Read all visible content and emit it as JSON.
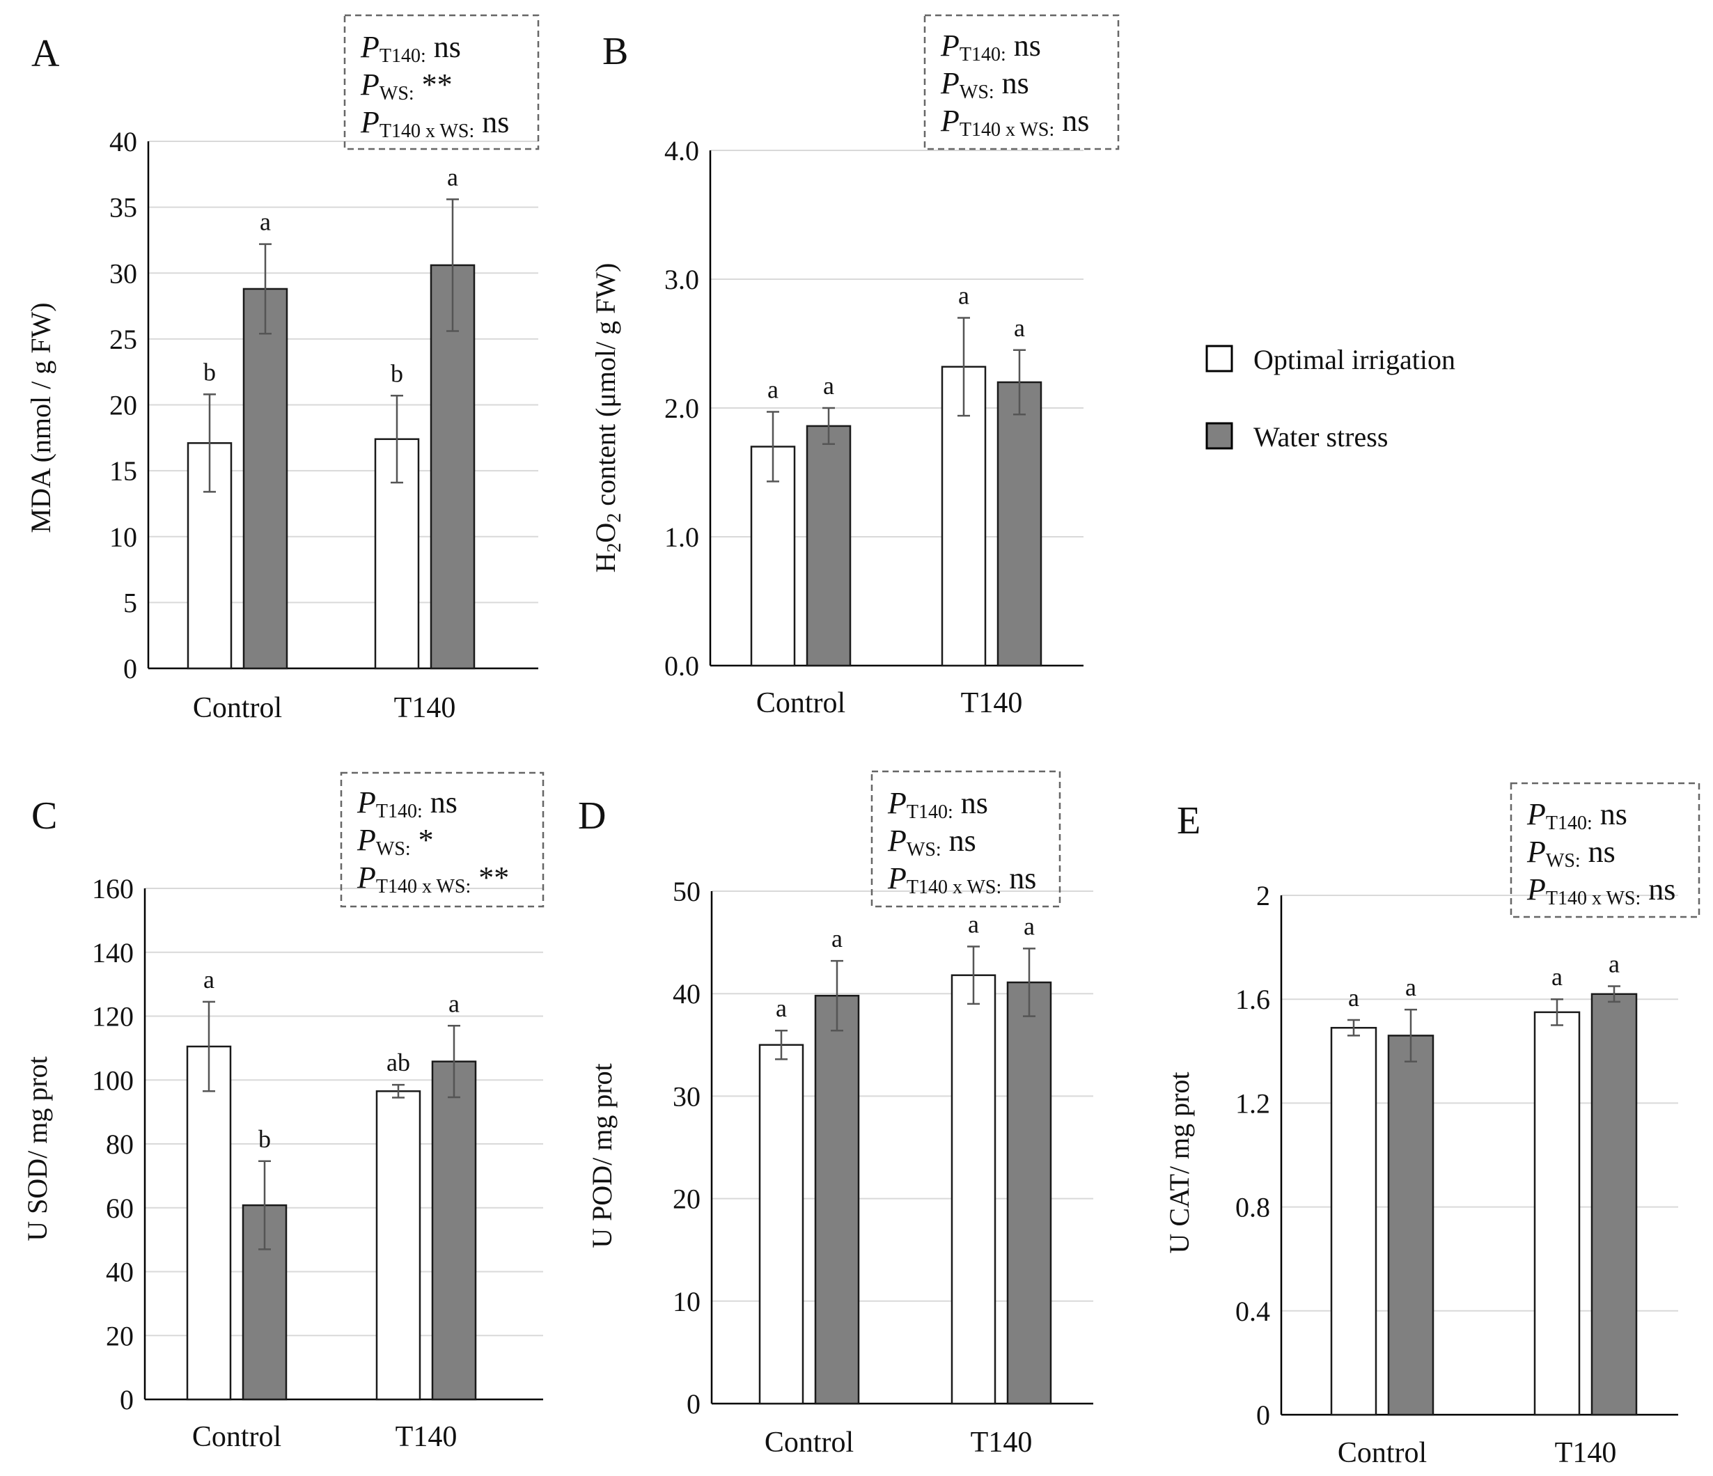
{
  "colors": {
    "optimal": "#ffffff",
    "water_stress": "#808080",
    "bar_stroke": "#1a1a1a",
    "grid": "#d9d9d9",
    "error_bar": "#555555",
    "box_border": "#666666"
  },
  "legend": {
    "items": [
      {
        "label": "Optimal irrigation",
        "color": "#ffffff"
      },
      {
        "label": "Water stress",
        "color": "#808080"
      }
    ]
  },
  "chart_data": [
    {
      "panel": "A",
      "type": "bar",
      "categories": [
        "Control",
        "T140"
      ],
      "ylabel": "MDA (nmol / g FW)",
      "ylim": [
        0,
        40
      ],
      "yticks": [
        "0",
        "5",
        "10",
        "15",
        "20",
        "25",
        "30",
        "35",
        "40"
      ],
      "grid": true,
      "series": [
        {
          "name": "Optimal irrigation",
          "values": [
            17.1,
            17.4
          ],
          "errors": [
            3.7,
            3.3
          ],
          "letters": [
            "b",
            "b"
          ]
        },
        {
          "name": "Water stress",
          "values": [
            28.8,
            30.6
          ],
          "errors": [
            3.4,
            5.0
          ],
          "letters": [
            "a",
            "a"
          ]
        }
      ],
      "stats": [
        {
          "P": "P",
          "sub": "T140:",
          "value": "ns"
        },
        {
          "P": "P",
          "sub": "WS:",
          "value": "**"
        },
        {
          "P": "P",
          "sub": "T140 x WS:",
          "value": "ns"
        }
      ]
    },
    {
      "panel": "B",
      "type": "bar",
      "categories": [
        "Control",
        "T140"
      ],
      "ylabel_pre": "H",
      "ylabel_sub1": "2",
      "ylabel_mid": "O",
      "ylabel_sub2": "2",
      "ylabel_post": " content (μmol/ g FW)",
      "ylim": [
        0,
        4
      ],
      "yticks": [
        "0.0",
        "1.0",
        "2.0",
        "3.0",
        "4.0"
      ],
      "grid": true,
      "series": [
        {
          "name": "Optimal irrigation",
          "values": [
            1.7,
            2.32
          ],
          "errors": [
            0.27,
            0.38
          ],
          "letters": [
            "a",
            "a"
          ]
        },
        {
          "name": "Water stress",
          "values": [
            1.86,
            2.2
          ],
          "errors": [
            0.14,
            0.25
          ],
          "letters": [
            "a",
            "a"
          ]
        }
      ],
      "stats": [
        {
          "P": "P",
          "sub": "T140:",
          "value": "ns"
        },
        {
          "P": "P",
          "sub": "WS:",
          "value": "ns"
        },
        {
          "P": "P",
          "sub": "T140 x WS:",
          "value": "ns"
        }
      ]
    },
    {
      "panel": "C",
      "type": "bar",
      "categories": [
        "Control",
        "T140"
      ],
      "ylabel": "U SOD/ mg prot",
      "ylim": [
        0,
        160
      ],
      "yticks": [
        "0",
        "20",
        "40",
        "60",
        "80",
        "100",
        "120",
        "140",
        "160"
      ],
      "grid": true,
      "series": [
        {
          "name": "Optimal irrigation",
          "values": [
            110.5,
            96.5
          ],
          "errors": [
            14.0,
            2.0
          ],
          "letters": [
            "a",
            "ab"
          ]
        },
        {
          "name": "Water stress",
          "values": [
            60.8,
            105.8
          ],
          "errors": [
            13.8,
            11.2
          ],
          "letters": [
            "b",
            "a"
          ]
        }
      ],
      "stats": [
        {
          "P": "P",
          "sub": "T140:",
          "value": "ns"
        },
        {
          "P": "P",
          "sub": "WS:",
          "value": "*"
        },
        {
          "P": "P",
          "sub": "T140 x WS:",
          "value": "**"
        }
      ]
    },
    {
      "panel": "D",
      "type": "bar",
      "categories": [
        "Control",
        "T140"
      ],
      "ylabel": "U POD/ mg prot",
      "ylim": [
        0,
        50
      ],
      "yticks": [
        "0",
        "10",
        "20",
        "30",
        "40",
        "50"
      ],
      "grid": true,
      "series": [
        {
          "name": "Optimal irrigation",
          "values": [
            35.0,
            41.8
          ],
          "errors": [
            1.4,
            2.8
          ],
          "letters": [
            "a",
            "a"
          ]
        },
        {
          "name": "Water stress",
          "values": [
            39.8,
            41.1
          ],
          "errors": [
            3.4,
            3.3
          ],
          "letters": [
            "a",
            "a"
          ]
        }
      ],
      "stats": [
        {
          "P": "P",
          "sub": "T140:",
          "value": "ns"
        },
        {
          "P": "P",
          "sub": "WS:",
          "value": "ns"
        },
        {
          "P": "P",
          "sub": "T140 x WS:",
          "value": "ns"
        }
      ]
    },
    {
      "panel": "E",
      "type": "bar",
      "categories": [
        "Control",
        "T140"
      ],
      "ylabel": "U CAT/ mg prot",
      "ylim": [
        0,
        2
      ],
      "yticks": [
        "0",
        "0.4",
        "0.8",
        "1.2",
        "1.6",
        "2"
      ],
      "grid": true,
      "series": [
        {
          "name": "Optimal irrigation",
          "values": [
            1.49,
            1.55
          ],
          "errors": [
            0.03,
            0.05
          ],
          "letters": [
            "a",
            "a"
          ]
        },
        {
          "name": "Water stress",
          "values": [
            1.46,
            1.62
          ],
          "errors": [
            0.1,
            0.03
          ],
          "letters": [
            "a",
            "a"
          ]
        }
      ],
      "stats": [
        {
          "P": "P",
          "sub": "T140:",
          "value": "ns"
        },
        {
          "P": "P",
          "sub": "WS:",
          "value": "ns"
        },
        {
          "P": "P",
          "sub": "T140 x WS:",
          "value": "ns"
        }
      ]
    }
  ]
}
